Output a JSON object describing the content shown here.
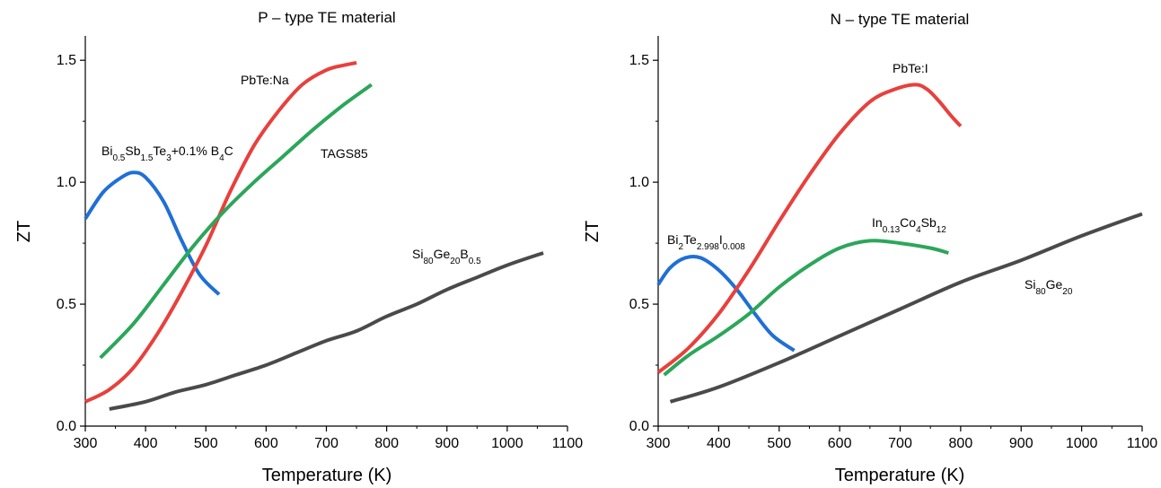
{
  "chart_data": [
    {
      "type": "line",
      "title": "P – type TE material",
      "xlabel": "Temperature (K)",
      "ylabel": "ZT",
      "xlim": [
        300,
        1100
      ],
      "ylim": [
        0,
        1.6
      ],
      "xticks": [
        "300",
        "400",
        "500",
        "600",
        "700",
        "800",
        "900",
        "1000",
        "1100"
      ],
      "yticks": [
        "0.0",
        "0.5",
        "1.0",
        "1.5"
      ],
      "series": [
        {
          "color": "#1f6fd6",
          "x": [
            300,
            330,
            360,
            380,
            400,
            430,
            460,
            490,
            522
          ],
          "y": [
            0.85,
            0.96,
            1.02,
            1.04,
            1.02,
            0.92,
            0.76,
            0.62,
            0.54
          ]
        },
        {
          "color": "#e8403c",
          "x": [
            300,
            340,
            380,
            420,
            460,
            500,
            540,
            580,
            620,
            660,
            700,
            730,
            750
          ],
          "y": [
            0.1,
            0.15,
            0.24,
            0.38,
            0.55,
            0.74,
            0.96,
            1.15,
            1.29,
            1.4,
            1.46,
            1.48,
            1.49
          ]
        },
        {
          "color": "#2ca65a",
          "x": [
            325,
            380,
            430,
            480,
            530,
            580,
            630,
            680,
            730,
            775
          ],
          "y": [
            0.28,
            0.42,
            0.58,
            0.74,
            0.88,
            1.0,
            1.11,
            1.22,
            1.32,
            1.4
          ]
        },
        {
          "color": "#4a4a4a",
          "x": [
            340,
            400,
            450,
            500,
            550,
            600,
            650,
            700,
            750,
            800,
            850,
            900,
            950,
            1000,
            1060
          ],
          "y": [
            0.07,
            0.1,
            0.14,
            0.17,
            0.21,
            0.25,
            0.3,
            0.35,
            0.39,
            0.45,
            0.5,
            0.56,
            0.61,
            0.66,
            0.71
          ]
        }
      ],
      "annotations": [
        {
          "name": "PbTe:Na",
          "x": 545,
          "y": 1.42
        },
        {
          "name": "TAGS85",
          "x": 660,
          "y": 1.12
        },
        {
          "name": "Si80Ge20B0.5",
          "x": 840,
          "y": 0.7
        },
        {
          "name": "Bi0.5Sb1.5Te3+0.1% B4C",
          "x": 325,
          "y": 1.12
        }
      ]
    },
    {
      "type": "line",
      "title": "N – type TE material",
      "xlabel": "Temperature (K)",
      "ylabel": "ZT",
      "xlim": [
        300,
        1100
      ],
      "ylim": [
        0,
        1.6
      ],
      "xticks": [
        "300",
        "400",
        "500",
        "600",
        "700",
        "800",
        "900",
        "1000",
        "1100"
      ],
      "yticks": [
        "0.0",
        "0.5",
        "1.0",
        "1.5"
      ],
      "series": [
        {
          "color": "#1f6fd6",
          "x": [
            300,
            320,
            345,
            370,
            400,
            430,
            460,
            490,
            525
          ],
          "y": [
            0.58,
            0.65,
            0.69,
            0.69,
            0.64,
            0.56,
            0.46,
            0.37,
            0.31
          ]
        },
        {
          "color": "#e8403c",
          "x": [
            300,
            350,
            400,
            450,
            500,
            550,
            600,
            650,
            690,
            725,
            745,
            765,
            785,
            800
          ],
          "y": [
            0.22,
            0.32,
            0.46,
            0.64,
            0.84,
            1.03,
            1.2,
            1.33,
            1.38,
            1.4,
            1.38,
            1.33,
            1.27,
            1.23
          ]
        },
        {
          "color": "#2ca65a",
          "x": [
            310,
            350,
            400,
            450,
            500,
            550,
            600,
            650,
            700,
            750,
            780
          ],
          "y": [
            0.21,
            0.29,
            0.37,
            0.46,
            0.57,
            0.66,
            0.73,
            0.76,
            0.75,
            0.73,
            0.71
          ]
        },
        {
          "color": "#4a4a4a",
          "x": [
            320,
            400,
            500,
            600,
            700,
            800,
            900,
            1000,
            1100
          ],
          "y": [
            0.1,
            0.16,
            0.26,
            0.37,
            0.48,
            0.59,
            0.68,
            0.78,
            0.87
          ]
        }
      ],
      "annotations": [
        {
          "name": "PbTe:I",
          "x": 675,
          "y": 1.4
        },
        {
          "name": "In0.13Co4Sb12",
          "x": 655,
          "y": 0.81
        },
        {
          "name": "Bi2Te2.998I0.008",
          "x": 312,
          "y": 0.74
        },
        {
          "name": "Si80Ge20",
          "x": 900,
          "y": 0.56
        }
      ]
    }
  ]
}
